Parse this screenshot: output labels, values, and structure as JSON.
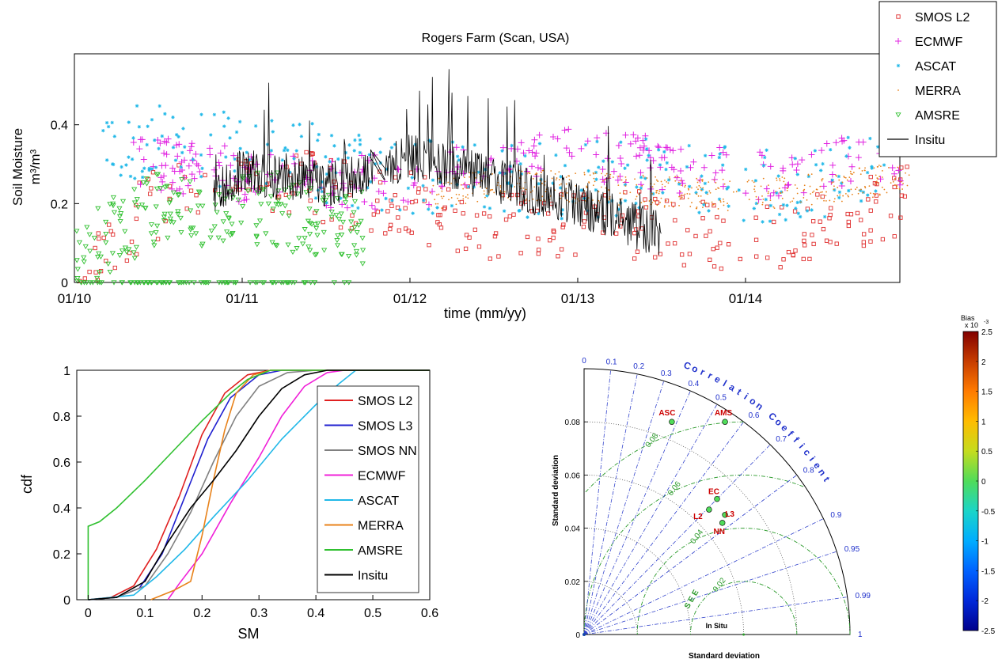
{
  "chart_data": [
    {
      "type": "scatter",
      "title": "Rogers Farm (Scan, USA)",
      "xlabel": "time (mm/yy)",
      "ylabel": "Soil Moisture",
      "ylabel_unit": "m³/m³",
      "x_tick_labels": [
        "01/10",
        "01/11",
        "01/12",
        "01/13",
        "01/14"
      ],
      "y_ticks": [
        0,
        0.2,
        0.4
      ],
      "y_tick_labels": [
        "0",
        "0.2",
        "0.4"
      ],
      "ylim": [
        0,
        0.58
      ],
      "xlim": [
        "2010-01",
        "2014-12"
      ],
      "legend_position": "top-right outside",
      "series": [
        {
          "name": "SMOS L2",
          "marker": "square",
          "color": "#e03030",
          "x_range": [
            0.03,
            4.98
          ],
          "level": [
            0.05,
            0.2,
            0.28,
            0.23,
            0.19,
            0.14,
            0.15,
            0.14,
            0.11,
            0.14,
            0.22
          ],
          "spread": 0.09,
          "seed": 11
        },
        {
          "name": "ECMWF",
          "marker": "plus",
          "color": "#e020e0",
          "x_range": [
            0.35,
            4.93
          ],
          "level": [
            0.32,
            0.3,
            0.27,
            0.26,
            0.25,
            0.3,
            0.33,
            0.3,
            0.27,
            0.3,
            0.32
          ],
          "spread": 0.07,
          "seed": 23
        },
        {
          "name": "ASCAT",
          "marker": "asterisk",
          "color": "#20b8e8",
          "x_range": [
            0.14,
            4.87
          ],
          "level": [
            0.3,
            0.38,
            0.32,
            0.3,
            0.27,
            0.25,
            0.26,
            0.27,
            0.24,
            0.26,
            0.3
          ],
          "spread": 0.1,
          "seed": 37
        },
        {
          "name": "MERRA",
          "marker": "dot",
          "color": "#e8821a",
          "x_range": [
            2.12,
            4.98
          ],
          "level": [
            0.26,
            0.24,
            0.22,
            0.2,
            0.21,
            0.25,
            0.24,
            0.23,
            0.22,
            0.24,
            0.27
          ],
          "spread": 0.04,
          "seed": 41
        },
        {
          "name": "AMSRE",
          "marker": "triangle-down",
          "color": "#30c030",
          "x_range": [
            0.0,
            1.72
          ],
          "level": [
            0.08,
            0.18,
            0.2,
            0.16,
            0.12,
            0.1,
            0.14,
            0.18,
            0.15,
            0.12,
            0.08
          ],
          "spread": 0.1,
          "seed": 53
        },
        {
          "name": "Insitu",
          "marker": "line",
          "color": "#000000",
          "x_range": [
            0.83,
            3.5
          ],
          "level": [
            0.22,
            0.15,
            0.28,
            0.25,
            0.32,
            0.26,
            0.2,
            0.12,
            0.08,
            0.18,
            0.28
          ],
          "spread": 0.12,
          "seed": 67
        }
      ]
    },
    {
      "type": "line",
      "xlabel": "SM",
      "ylabel": "cdf",
      "xlim": [
        -0.02,
        0.6
      ],
      "ylim": [
        0,
        1
      ],
      "x_ticks": [
        0,
        0.1,
        0.2,
        0.3,
        0.4,
        0.5,
        0.6
      ],
      "x_tick_labels": [
        "0",
        "0.1",
        "0.2",
        "0.3",
        "0.4",
        "0.5",
        "0.6"
      ],
      "y_ticks": [
        0,
        0.2,
        0.4,
        0.6,
        0.8,
        1
      ],
      "y_tick_labels": [
        "0",
        "0.2",
        "0.4",
        "0.6",
        "0.8",
        "1"
      ],
      "legend_position": "right",
      "series": [
        {
          "name": "SMOS L2",
          "color": "#e02020",
          "points": [
            [
              0,
              0
            ],
            [
              0.04,
              0.01
            ],
            [
              0.08,
              0.06
            ],
            [
              0.12,
              0.22
            ],
            [
              0.16,
              0.45
            ],
            [
              0.2,
              0.72
            ],
            [
              0.24,
              0.9
            ],
            [
              0.28,
              0.98
            ],
            [
              0.32,
              1
            ],
            [
              0.6,
              1
            ]
          ]
        },
        {
          "name": "SMOS L3",
          "color": "#2020d0",
          "points": [
            [
              0,
              0
            ],
            [
              0.05,
              0.01
            ],
            [
              0.09,
              0.05
            ],
            [
              0.13,
              0.2
            ],
            [
              0.17,
              0.45
            ],
            [
              0.21,
              0.7
            ],
            [
              0.25,
              0.88
            ],
            [
              0.3,
              0.98
            ],
            [
              0.34,
              1
            ],
            [
              0.6,
              1
            ]
          ]
        },
        {
          "name": "SMOS NN",
          "color": "#808080",
          "points": [
            [
              0,
              0
            ],
            [
              0.05,
              0.01
            ],
            [
              0.1,
              0.06
            ],
            [
              0.14,
              0.2
            ],
            [
              0.18,
              0.38
            ],
            [
              0.22,
              0.6
            ],
            [
              0.26,
              0.8
            ],
            [
              0.3,
              0.93
            ],
            [
              0.35,
              0.99
            ],
            [
              0.4,
              1
            ],
            [
              0.6,
              1
            ]
          ]
        },
        {
          "name": "ECMWF",
          "color": "#f020d8",
          "points": [
            [
              0.14,
              0
            ],
            [
              0.16,
              0.07
            ],
            [
              0.2,
              0.2
            ],
            [
              0.25,
              0.42
            ],
            [
              0.3,
              0.62
            ],
            [
              0.34,
              0.8
            ],
            [
              0.38,
              0.93
            ],
            [
              0.42,
              0.99
            ],
            [
              0.45,
              1
            ],
            [
              0.6,
              1
            ]
          ]
        },
        {
          "name": "ASCAT",
          "color": "#20b8e8",
          "points": [
            [
              0,
              0
            ],
            [
              0.08,
              0.02
            ],
            [
              0.12,
              0.1
            ],
            [
              0.17,
              0.22
            ],
            [
              0.22,
              0.36
            ],
            [
              0.28,
              0.52
            ],
            [
              0.34,
              0.7
            ],
            [
              0.4,
              0.85
            ],
            [
              0.44,
              0.94
            ],
            [
              0.47,
              1
            ],
            [
              0.6,
              1
            ]
          ]
        },
        {
          "name": "MERRA",
          "color": "#e8821a",
          "points": [
            [
              0.11,
              0
            ],
            [
              0.15,
              0.04
            ],
            [
              0.18,
              0.08
            ],
            [
              0.2,
              0.28
            ],
            [
              0.22,
              0.52
            ],
            [
              0.24,
              0.74
            ],
            [
              0.26,
              0.9
            ],
            [
              0.29,
              0.98
            ],
            [
              0.32,
              1
            ],
            [
              0.6,
              1
            ]
          ]
        },
        {
          "name": "AMSRE",
          "color": "#30c030",
          "points": [
            [
              0,
              0
            ],
            [
              0,
              0.32
            ],
            [
              0.02,
              0.34
            ],
            [
              0.05,
              0.4
            ],
            [
              0.1,
              0.52
            ],
            [
              0.15,
              0.65
            ],
            [
              0.2,
              0.78
            ],
            [
              0.25,
              0.9
            ],
            [
              0.28,
              0.96
            ],
            [
              0.32,
              1
            ],
            [
              0.6,
              1
            ]
          ]
        },
        {
          "name": "Insitu",
          "color": "#000000",
          "points": [
            [
              0,
              0
            ],
            [
              0.05,
              0.01
            ],
            [
              0.1,
              0.08
            ],
            [
              0.14,
              0.25
            ],
            [
              0.18,
              0.4
            ],
            [
              0.22,
              0.52
            ],
            [
              0.26,
              0.65
            ],
            [
              0.3,
              0.8
            ],
            [
              0.34,
              0.92
            ],
            [
              0.38,
              0.98
            ],
            [
              0.42,
              1
            ],
            [
              0.6,
              1
            ]
          ]
        }
      ]
    },
    {
      "type": "scatter",
      "subtype": "taylor-diagram",
      "xlabel": "Standard deviation",
      "ylabel": "Standard deviation",
      "correlation_label": "Correlation Coefficient",
      "rmsd_label": "S E E",
      "reference_label": "In Situ",
      "reference_std": 0.06,
      "max_std": 0.1,
      "std_ticks": [
        0,
        0.02,
        0.04,
        0.06,
        0.08
      ],
      "std_tick_labels": [
        "0",
        "0.02",
        "0.04",
        "0.06",
        "0.08"
      ],
      "correlation_ticks": [
        0,
        0.1,
        0.2,
        0.3,
        0.4,
        0.5,
        0.6,
        0.7,
        0.8,
        0.9,
        0.95,
        0.99,
        1
      ],
      "correlation_tick_labels": [
        "0",
        "0.1",
        "0.2",
        "0.3",
        "0.4",
        "0.5",
        "0.6",
        "0.7",
        "0.8",
        "0.9",
        "0.95",
        "0.99",
        "1"
      ],
      "rmsd_ticks": [
        0.02,
        0.04,
        0.06,
        0.08
      ],
      "rmsd_tick_labels": [
        "0.02",
        "0.04",
        "0.06",
        "0.08"
      ],
      "points": [
        {
          "name": "ASC",
          "x": 0.033,
          "y": 0.08,
          "bias": 0.0024
        },
        {
          "name": "AMS",
          "x": 0.053,
          "y": 0.08,
          "bias": -0.0024
        },
        {
          "name": "EC",
          "x": 0.05,
          "y": 0.051,
          "bias": 0.0025
        },
        {
          "name": "L2",
          "x": 0.047,
          "y": 0.047,
          "bias": 0.0018
        },
        {
          "name": "L3",
          "x": 0.053,
          "y": 0.045,
          "bias": 0.0023
        },
        {
          "name": "NN",
          "x": 0.052,
          "y": 0.042,
          "bias": -0.0001
        }
      ],
      "colorbar": {
        "title": "Bias",
        "exponent": "x 10",
        "exponent_power": "-3",
        "range": [
          -2.5,
          2.5
        ],
        "tick_values": [
          2.5,
          2,
          1.5,
          1,
          0.5,
          0,
          -0.5,
          -1,
          -1.5,
          -2,
          -2.5
        ],
        "tick_labels": [
          "2.5",
          "2",
          "1.5",
          "1",
          "0.5",
          "0",
          "-0.5",
          "-1",
          "-1.5",
          "-2",
          "-2.5"
        ]
      }
    }
  ]
}
